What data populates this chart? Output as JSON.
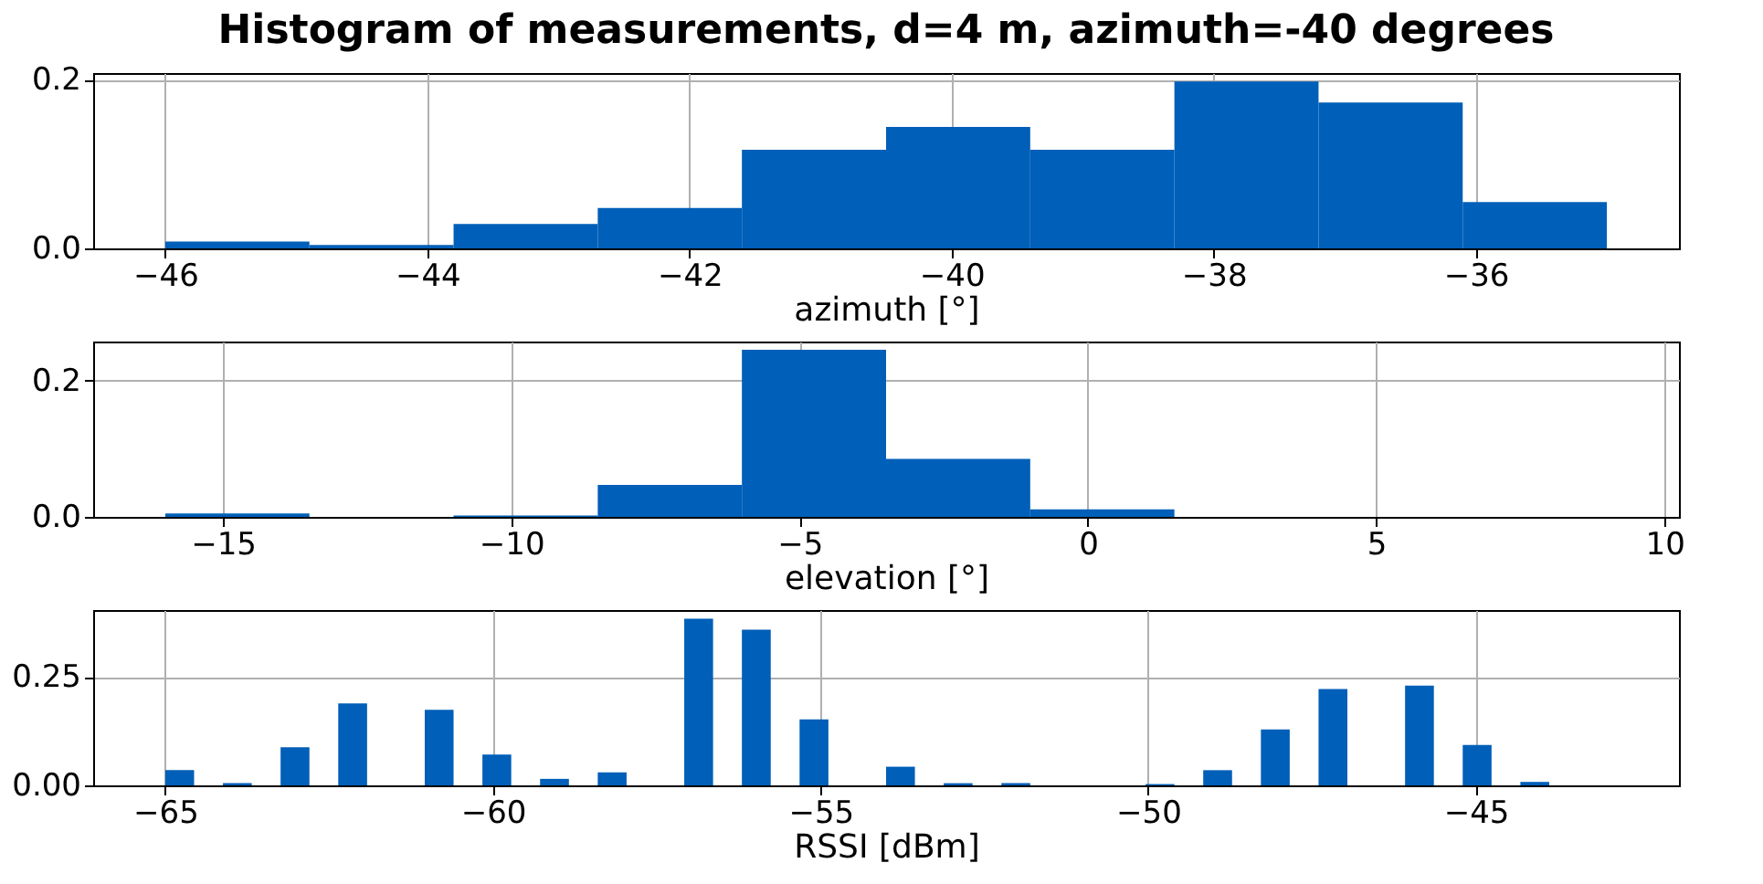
{
  "chart_data": [
    {
      "type": "histogram",
      "title": "Histogram of measurements, d=4 m, azimuth=-40 degrees",
      "xlabel": "azimuth [°]",
      "color": "#005fb8",
      "grid": true,
      "bins": [
        -46,
        -44.9,
        -43.8,
        -42.7,
        -41.6,
        -40.5,
        -39.4,
        -38.3,
        -37.2,
        -36.1,
        -35
      ],
      "values": [
        0.008,
        0.004,
        0.029,
        0.048,
        0.117,
        0.144,
        0.117,
        0.198,
        0.173,
        0.055
      ],
      "xlim": [
        -46.55,
        -34.45
      ],
      "xticks": [
        {
          "value": -46,
          "label": "−46"
        },
        {
          "value": -44,
          "label": "−44"
        },
        {
          "value": -42,
          "label": "−42"
        },
        {
          "value": -40,
          "label": "−40"
        },
        {
          "value": -38,
          "label": "−38"
        },
        {
          "value": -36,
          "label": "−36"
        }
      ],
      "ylim": [
        0,
        0.208
      ],
      "yticks": [
        {
          "value": 0,
          "label": "0.0"
        },
        {
          "value": 0.2,
          "label": "0.2"
        }
      ]
    },
    {
      "type": "histogram",
      "xlabel": "elevation [°]",
      "color": "#005fb8",
      "grid": true,
      "bins": [
        -16,
        -13.5,
        -11,
        -8.5,
        -6,
        -3.5,
        -1,
        1.5,
        4,
        6.5,
        9
      ],
      "values": [
        0.005,
        0,
        0.002,
        0.047,
        0.245,
        0.085,
        0.011,
        0,
        0,
        0
      ],
      "xlim": [
        -17.25,
        10.25
      ],
      "xticks": [
        {
          "value": -15,
          "label": "−15"
        },
        {
          "value": -10,
          "label": "−10"
        },
        {
          "value": -5,
          "label": "−5"
        },
        0,
        5,
        10
      ],
      "ylim": [
        0,
        0.257
      ],
      "yticks": [
        {
          "value": 0,
          "label": "0.0"
        },
        {
          "value": 0.2,
          "label": "0.2"
        }
      ]
    },
    {
      "type": "histogram",
      "xlabel": "RSSI [dBm]",
      "color": "#005fb8",
      "grid": true,
      "bins": [
        -65,
        -64.56,
        -64.12,
        -63.68,
        -63.24,
        -62.8,
        -62.36,
        -61.92,
        -61.48,
        -61.04,
        -60.6,
        -60.16,
        -59.72,
        -59.28,
        -58.84,
        -58.4,
        -57.96,
        -57.52,
        -57.08,
        -56.64,
        -56.2,
        -55.76,
        -55.32,
        -54.88,
        -54.44,
        -54,
        -53.56,
        -53.12,
        -52.68,
        -52.24,
        -51.8,
        -51.36,
        -50.92,
        -50.48,
        -50.04,
        -49.6,
        -49.16,
        -48.72,
        -48.28,
        -47.84,
        -47.4,
        -46.96,
        -46.52,
        -46.08,
        -45.64,
        -45.2,
        -44.76,
        -44.32,
        -43.88,
        -43.44,
        -43
      ],
      "values": [
        0.035,
        0,
        0.005,
        0,
        0.088,
        0,
        0.189,
        0,
        0,
        0.174,
        0,
        0.071,
        0,
        0.015,
        0,
        0.03,
        0,
        0,
        0.384,
        0,
        0.359,
        0,
        0.152,
        0,
        0,
        0.043,
        0,
        0.005,
        0,
        0.005,
        0,
        0,
        0,
        0,
        0.003,
        0,
        0.035,
        0,
        0.129,
        0,
        0.222,
        0,
        0,
        0.23,
        0,
        0.093,
        0,
        0.008,
        0,
        0
      ],
      "xlim": [
        -66.1,
        -41.9
      ],
      "xticks": [
        {
          "value": -65,
          "label": "−65"
        },
        {
          "value": -60,
          "label": "−60"
        },
        {
          "value": -55,
          "label": "−55"
        },
        {
          "value": -50,
          "label": "−50"
        },
        {
          "value": -45,
          "label": "−45"
        }
      ],
      "ylim": [
        0,
        0.404
      ],
      "yticks": [
        {
          "value": 0,
          "label": "0.00"
        },
        {
          "value": 0.25,
          "label": "0.25"
        }
      ]
    }
  ]
}
